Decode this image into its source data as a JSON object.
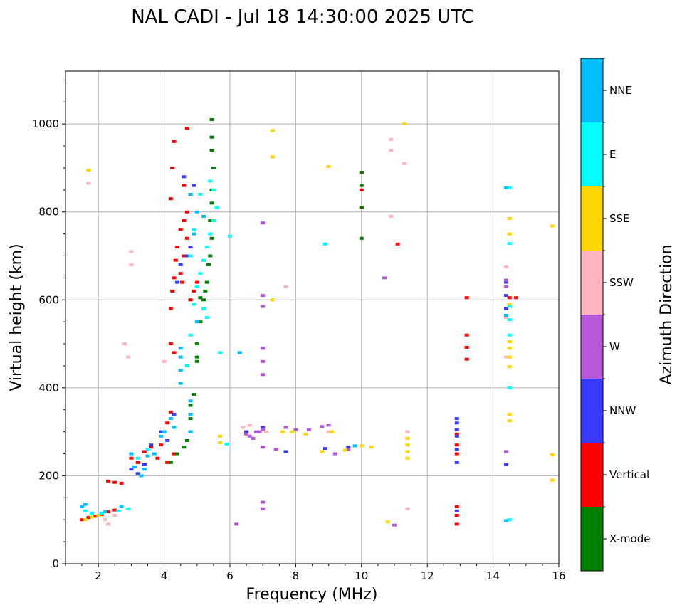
{
  "chart_data": {
    "type": "scatter",
    "title": "NAL CADI - Jul 18 14:30:00 2025 UTC",
    "xlabel": "Frequency (MHz)",
    "ylabel": "Virtual height (km)",
    "xlim": [
      1,
      16
    ],
    "ylim": [
      0,
      1120
    ],
    "xticks": [
      2,
      4,
      6,
      8,
      10,
      12,
      14,
      16
    ],
    "yticks": [
      0,
      200,
      400,
      600,
      800,
      1000
    ],
    "grid": true,
    "colorbar": {
      "label": "Azimuth Direction",
      "categories": [
        {
          "name": "X-mode",
          "color": "#008000"
        },
        {
          "name": "Vertical",
          "color": "#ff0000"
        },
        {
          "name": "NNW",
          "color": "#3a3aff"
        },
        {
          "name": "W",
          "color": "#b658d8"
        },
        {
          "name": "SSW",
          "color": "#ffb6c1"
        },
        {
          "name": "SSE",
          "color": "#ffd700"
        },
        {
          "name": "E",
          "color": "#00ffff"
        },
        {
          "name": "NNE",
          "color": "#00bfff"
        }
      ]
    },
    "series": [
      {
        "name": "Vertical",
        "points": [
          [
            1.5,
            100
          ],
          [
            1.7,
            105
          ],
          [
            1.9,
            108
          ],
          [
            2.1,
            112
          ],
          [
            2.3,
            118
          ],
          [
            2.5,
            122
          ],
          [
            2.3,
            188
          ],
          [
            2.5,
            185
          ],
          [
            2.7,
            183
          ],
          [
            3.0,
            240
          ],
          [
            3.2,
            230
          ],
          [
            3.4,
            255
          ],
          [
            3.6,
            265
          ],
          [
            3.8,
            240
          ],
          [
            3.9,
            270
          ],
          [
            4.0,
            300
          ],
          [
            4.1,
            320
          ],
          [
            4.2,
            345
          ],
          [
            4.1,
            230
          ],
          [
            4.3,
            250
          ],
          [
            4.2,
            580
          ],
          [
            4.25,
            620
          ],
          [
            4.3,
            650
          ],
          [
            4.35,
            690
          ],
          [
            4.4,
            720
          ],
          [
            4.5,
            760
          ],
          [
            4.6,
            780
          ],
          [
            4.7,
            800
          ],
          [
            4.2,
            830
          ],
          [
            4.25,
            900
          ],
          [
            4.3,
            960
          ],
          [
            4.6,
            860
          ],
          [
            4.7,
            990
          ],
          [
            4.5,
            660
          ],
          [
            4.55,
            640
          ],
          [
            4.8,
            600
          ],
          [
            4.9,
            620
          ],
          [
            5.0,
            640
          ],
          [
            4.6,
            700
          ],
          [
            4.7,
            740
          ],
          [
            4.2,
            500
          ],
          [
            4.3,
            480
          ],
          [
            10.0,
            810
          ],
          [
            10.0,
            850
          ],
          [
            10.0,
            890
          ],
          [
            11.1,
            727
          ],
          [
            12.9,
            90
          ],
          [
            12.9,
            110
          ],
          [
            12.9,
            130
          ],
          [
            12.9,
            250
          ],
          [
            12.9,
            270
          ],
          [
            12.9,
            295
          ],
          [
            13.2,
            465
          ],
          [
            13.2,
            492
          ],
          [
            13.2,
            520
          ],
          [
            13.2,
            605
          ],
          [
            14.5,
            605
          ],
          [
            14.7,
            605
          ]
        ]
      },
      {
        "name": "X-mode",
        "points": [
          [
            4.2,
            230
          ],
          [
            4.4,
            250
          ],
          [
            4.6,
            265
          ],
          [
            4.7,
            280
          ],
          [
            4.8,
            300
          ],
          [
            4.8,
            330
          ],
          [
            4.8,
            360
          ],
          [
            4.9,
            385
          ],
          [
            5.0,
            460
          ],
          [
            5.0,
            470
          ],
          [
            5.0,
            500
          ],
          [
            5.1,
            550
          ],
          [
            5.2,
            600
          ],
          [
            5.25,
            620
          ],
          [
            5.3,
            640
          ],
          [
            5.35,
            680
          ],
          [
            5.4,
            700
          ],
          [
            5.45,
            740
          ],
          [
            5.4,
            780
          ],
          [
            5.45,
            820
          ],
          [
            5.45,
            850
          ],
          [
            5.5,
            900
          ],
          [
            5.45,
            940
          ],
          [
            5.45,
            970
          ],
          [
            5.45,
            1010
          ],
          [
            5.2,
            580
          ],
          [
            5.1,
            605
          ],
          [
            10.0,
            740
          ],
          [
            10.0,
            810
          ],
          [
            10.0,
            860
          ],
          [
            10.0,
            890
          ]
        ]
      },
      {
        "name": "NNW",
        "points": [
          [
            3.0,
            215
          ],
          [
            3.2,
            205
          ],
          [
            3.4,
            225
          ],
          [
            3.6,
            270
          ],
          [
            3.9,
            300
          ],
          [
            4.1,
            280
          ],
          [
            4.3,
            340
          ],
          [
            4.4,
            640
          ],
          [
            4.5,
            680
          ],
          [
            4.7,
            700
          ],
          [
            4.8,
            720
          ],
          [
            4.6,
            880
          ],
          [
            4.9,
            860
          ],
          [
            6.5,
            300
          ],
          [
            7.0,
            310
          ],
          [
            7.7,
            255
          ],
          [
            8.9,
            262
          ],
          [
            9.6,
            265
          ],
          [
            12.9,
            120
          ],
          [
            12.9,
            230
          ],
          [
            12.9,
            260
          ],
          [
            12.9,
            290
          ],
          [
            12.9,
            305
          ],
          [
            12.9,
            320
          ],
          [
            12.9,
            330
          ],
          [
            14.4,
            225
          ],
          [
            14.4,
            255
          ],
          [
            14.4,
            580
          ],
          [
            14.4,
            610
          ],
          [
            14.4,
            640
          ]
        ]
      },
      {
        "name": "W",
        "points": [
          [
            6.4,
            310
          ],
          [
            6.5,
            295
          ],
          [
            6.6,
            290
          ],
          [
            6.7,
            285
          ],
          [
            6.8,
            300
          ],
          [
            6.9,
            300
          ],
          [
            7.0,
            305
          ],
          [
            7.0,
            265
          ],
          [
            7.0,
            125
          ],
          [
            7.0,
            140
          ],
          [
            7.0,
            430
          ],
          [
            7.0,
            460
          ],
          [
            7.0,
            490
          ],
          [
            7.0,
            610
          ],
          [
            7.0,
            585
          ],
          [
            7.0,
            775
          ],
          [
            7.4,
            260
          ],
          [
            7.7,
            310
          ],
          [
            8.0,
            305
          ],
          [
            8.4,
            305
          ],
          [
            8.8,
            312
          ],
          [
            9.0,
            315
          ],
          [
            9.2,
            250
          ],
          [
            9.6,
            260
          ],
          [
            10.7,
            650
          ],
          [
            6.2,
            90
          ],
          [
            11.0,
            88
          ],
          [
            14.4,
            645
          ],
          [
            14.4,
            630
          ],
          [
            14.4,
            255
          ]
        ]
      },
      {
        "name": "SSW",
        "points": [
          [
            2.0,
            110
          ],
          [
            2.2,
            100
          ],
          [
            2.3,
            90
          ],
          [
            2.5,
            110
          ],
          [
            2.8,
            500
          ],
          [
            3.0,
            680
          ],
          [
            3.0,
            710
          ],
          [
            2.9,
            470
          ],
          [
            4.0,
            460
          ],
          [
            6.4,
            310
          ],
          [
            6.6,
            315
          ],
          [
            7.1,
            300
          ],
          [
            7.7,
            630
          ],
          [
            9.0,
            300
          ],
          [
            10.9,
            790
          ],
          [
            10.9,
            940
          ],
          [
            10.9,
            965
          ],
          [
            11.3,
            910
          ],
          [
            11.4,
            300
          ],
          [
            11.4,
            125
          ],
          [
            14.4,
            675
          ],
          [
            14.4,
            470
          ],
          [
            14.4,
            560
          ],
          [
            1.7,
            865
          ]
        ]
      },
      {
        "name": "SSE",
        "points": [
          [
            1.6,
            100
          ],
          [
            1.8,
            106
          ],
          [
            2.0,
            110
          ],
          [
            5.7,
            275
          ],
          [
            5.7,
            290
          ],
          [
            7.3,
            985
          ],
          [
            7.3,
            925
          ],
          [
            7.3,
            600
          ],
          [
            7.6,
            300
          ],
          [
            7.9,
            300
          ],
          [
            8.3,
            295
          ],
          [
            8.8,
            255
          ],
          [
            9.0,
            903
          ],
          [
            9.1,
            300
          ],
          [
            9.5,
            258
          ],
          [
            10.0,
            268
          ],
          [
            10.3,
            265
          ],
          [
            10.8,
            95
          ],
          [
            11.3,
            1000
          ],
          [
            11.4,
            240
          ],
          [
            11.4,
            255
          ],
          [
            11.4,
            270
          ],
          [
            11.4,
            285
          ],
          [
            14.5,
            325
          ],
          [
            14.5,
            340
          ],
          [
            14.5,
            448
          ],
          [
            14.5,
            470
          ],
          [
            14.5,
            490
          ],
          [
            14.5,
            505
          ],
          [
            14.5,
            590
          ],
          [
            14.5,
            750
          ],
          [
            14.5,
            785
          ],
          [
            15.8,
            190
          ],
          [
            15.8,
            248
          ],
          [
            15.8,
            768
          ],
          [
            1.7,
            895
          ]
        ]
      },
      {
        "name": "E",
        "points": [
          [
            1.6,
            120
          ],
          [
            1.8,
            115
          ],
          [
            2.1,
            115
          ],
          [
            2.6,
            120
          ],
          [
            2.9,
            125
          ],
          [
            3.2,
            240
          ],
          [
            3.5,
            260
          ],
          [
            4.7,
            450
          ],
          [
            4.8,
            520
          ],
          [
            4.9,
            590
          ],
          [
            5.0,
            630
          ],
          [
            5.1,
            660
          ],
          [
            5.2,
            690
          ],
          [
            5.3,
            720
          ],
          [
            5.4,
            750
          ],
          [
            5.5,
            780
          ],
          [
            5.6,
            810
          ],
          [
            5.5,
            850
          ],
          [
            5.4,
            870
          ],
          [
            5.1,
            840
          ],
          [
            4.9,
            760
          ],
          [
            4.8,
            700
          ],
          [
            5.2,
            580
          ],
          [
            5.3,
            560
          ],
          [
            5.7,
            480
          ],
          [
            5.9,
            272
          ],
          [
            6.0,
            745
          ],
          [
            8.9,
            727
          ],
          [
            14.5,
            100
          ],
          [
            14.5,
            400
          ],
          [
            14.5,
            520
          ],
          [
            14.5,
            555
          ],
          [
            14.5,
            585
          ],
          [
            14.5,
            728
          ],
          [
            14.5,
            855
          ]
        ]
      },
      {
        "name": "NNE",
        "points": [
          [
            1.5,
            130
          ],
          [
            1.6,
            135
          ],
          [
            2.2,
            118
          ],
          [
            2.7,
            130
          ],
          [
            3.0,
            250
          ],
          [
            3.1,
            220
          ],
          [
            3.3,
            200
          ],
          [
            3.4,
            215
          ],
          [
            3.5,
            245
          ],
          [
            3.7,
            250
          ],
          [
            3.9,
            290
          ],
          [
            4.0,
            300
          ],
          [
            4.2,
            330
          ],
          [
            4.3,
            310
          ],
          [
            4.5,
            410
          ],
          [
            4.5,
            440
          ],
          [
            4.5,
            470
          ],
          [
            4.5,
            490
          ],
          [
            4.8,
            300
          ],
          [
            4.8,
            340
          ],
          [
            4.8,
            370
          ],
          [
            4.9,
            750
          ],
          [
            4.8,
            840
          ],
          [
            5.0,
            800
          ],
          [
            5.2,
            790
          ],
          [
            5.0,
            550
          ],
          [
            6.3,
            480
          ],
          [
            9.8,
            268
          ],
          [
            14.4,
            98
          ],
          [
            14.4,
            565
          ],
          [
            14.4,
            855
          ]
        ]
      }
    ]
  }
}
